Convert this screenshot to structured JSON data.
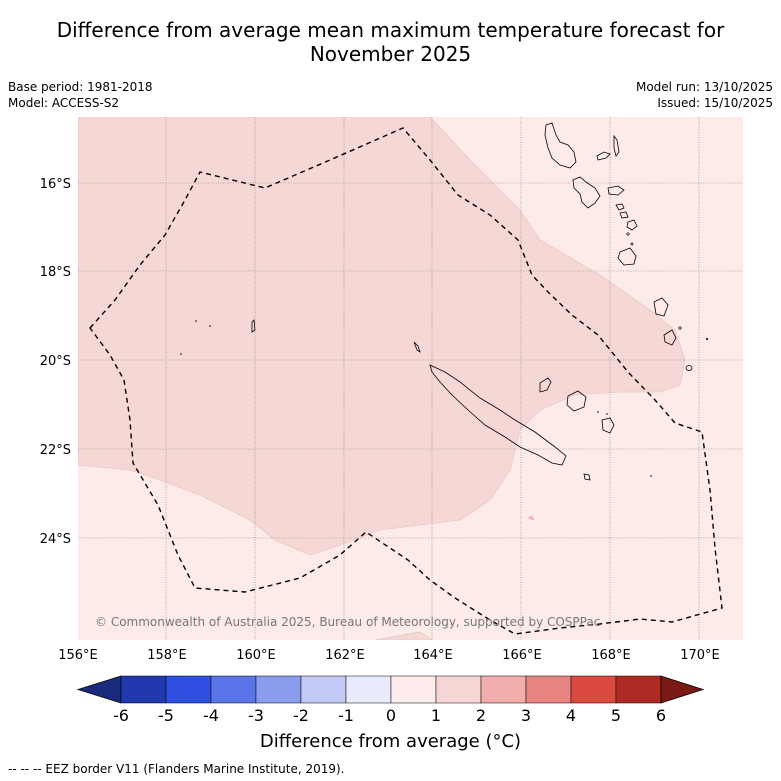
{
  "title": "Difference from average mean maximum temperature forecast for November 2025",
  "title_line1": "Difference from average mean maximum temperature forecast for",
  "title_line2": "November 2025",
  "base_period": "Base period: 1981-2018",
  "model": "Model: ACCESS-S2",
  "model_run": "Model run: 13/10/2025",
  "issued": "Issued: 15/10/2025",
  "copyright": "© Commonwealth of Australia 2025, Bureau of Meteorology, supported by COSPPac",
  "lat_labels": [
    "16°S",
    "18°S",
    "20°S",
    "22°S",
    "24°S"
  ],
  "lon_labels": [
    "156°E",
    "158°E",
    "160°E",
    "162°E",
    "164°E",
    "166°E",
    "168°E",
    "170°E"
  ],
  "colorbar": {
    "ticks": [
      "-6",
      "-5",
      "-4",
      "-3",
      "-2",
      "-1",
      "0",
      "1",
      "2",
      "3",
      "4",
      "5",
      "6"
    ],
    "colors": [
      "#1a2a7c",
      "#2239ad",
      "#2f4fe0",
      "#5a75e8",
      "#8a9ded",
      "#c2c9f4",
      "#e8ebfb",
      "#fdeceb",
      "#f5d6d4",
      "#efaeab",
      "#e8847f",
      "#db4a40",
      "#ae2a24",
      "#7a1915"
    ],
    "label": "Difference from average (°C)"
  },
  "footnote": "--  --  -- EEZ border V11 (Flanders Marine Institute, 2019).",
  "colors": {
    "anomaly_light": "#fcebe9",
    "anomaly_mid": "#f5d8d5",
    "gridline": "#777777",
    "eez_border": "#000000"
  }
}
